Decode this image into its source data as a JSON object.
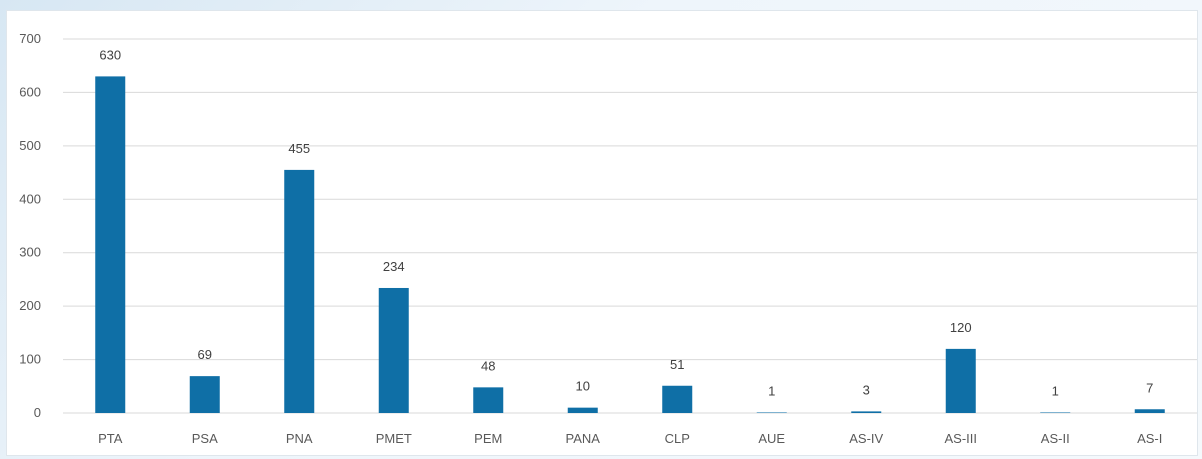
{
  "chart_data": {
    "type": "bar",
    "categories": [
      "PTA",
      "PSA",
      "PNA",
      "PMET",
      "PEM",
      "PANA",
      "CLP",
      "AUE",
      "AS-IV",
      "AS-III",
      "AS-II",
      "AS-I"
    ],
    "values": [
      630,
      69,
      455,
      234,
      48,
      10,
      51,
      1,
      3,
      120,
      1,
      7
    ],
    "title": "",
    "xlabel": "",
    "ylabel": "",
    "ylim": [
      0,
      700
    ],
    "yticks": [
      0,
      100,
      200,
      300,
      400,
      500,
      600,
      700
    ],
    "grid": true,
    "legend": "none",
    "bar_color": "#0f6fa6"
  }
}
